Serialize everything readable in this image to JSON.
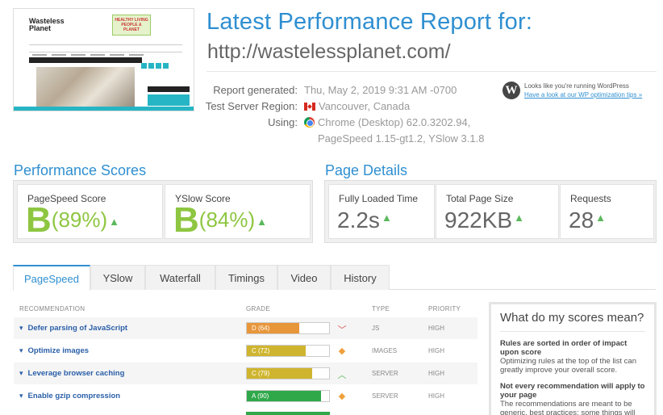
{
  "header": {
    "title": "Latest Performance Report for:",
    "url": "http://wastelessplanet.com/",
    "report_generated_label": "Report generated:",
    "report_generated_value": "Thu, May 2, 2019 9:31 AM -0700",
    "server_region_label": "Test Server Region:",
    "server_region_value": "Vancouver, Canada",
    "using_label": "Using:",
    "using_value_line1": "Chrome (Desktop) 62.0.3202.94,",
    "using_value_line2": "PageSpeed 1.15-gt1.2, YSlow 3.1.8",
    "wp_notice": "Looks like you're running WordPress",
    "wp_link": "Have a look at our WP optimization tips »"
  },
  "screenshot": {
    "site_logo": "Wasteless Planet",
    "site_banner": "HEALTHY LIVING PEOPLE & PLANET"
  },
  "performance_scores": {
    "title": "Performance Scores",
    "pagespeed": {
      "label": "PageSpeed Score",
      "grade": "B",
      "percent": "(89%)"
    },
    "yslow": {
      "label": "YSlow Score",
      "grade": "B",
      "percent": "(84%)"
    }
  },
  "page_details": {
    "title": "Page Details",
    "fully_loaded": {
      "label": "Fully Loaded Time",
      "value": "2.2s"
    },
    "page_size": {
      "label": "Total Page Size",
      "value": "922KB"
    },
    "requests": {
      "label": "Requests",
      "value": "28"
    }
  },
  "tabs": [
    {
      "label": "PageSpeed",
      "active": true
    },
    {
      "label": "YSlow"
    },
    {
      "label": "Waterfall"
    },
    {
      "label": "Timings"
    },
    {
      "label": "Video"
    },
    {
      "label": "History"
    }
  ],
  "table": {
    "headers": {
      "recommendation": "RECOMMENDATION",
      "grade": "GRADE",
      "type": "TYPE",
      "priority": "PRIORITY"
    },
    "rows": [
      {
        "name": "Defer parsing of JavaScript",
        "grade": "D (64)",
        "score": 64,
        "color": "#e8963a",
        "trend": "down",
        "type": "JS",
        "priority": "HIGH"
      },
      {
        "name": "Optimize images",
        "grade": "C (72)",
        "score": 72,
        "color": "#cfb52f",
        "trend": "same",
        "type": "IMAGES",
        "priority": "HIGH"
      },
      {
        "name": "Leverage browser caching",
        "grade": "C (79)",
        "score": 79,
        "color": "#cfb52f",
        "trend": "up",
        "type": "SERVER",
        "priority": "HIGH"
      },
      {
        "name": "Enable gzip compression",
        "grade": "A (90)",
        "score": 90,
        "color": "#2fa84a",
        "trend": "same",
        "type": "SERVER",
        "priority": "HIGH"
      }
    ]
  },
  "help": {
    "title": "What do my scores mean?",
    "heading1": "Rules are sorted in order of impact upon score",
    "para1": "Optimizing rules at the top of the list can greatly improve your overall score.",
    "heading2": "Not every recommendation will apply to your page",
    "para2": "The recommendations are meant to be generic, best practices; some things will"
  },
  "colors": {
    "accent": "#2f8fd1",
    "grade_green": "#8ec641"
  }
}
